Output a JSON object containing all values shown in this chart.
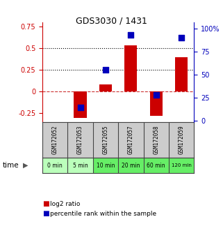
{
  "title": "GDS3030 / 1431",
  "samples": [
    "GSM172052",
    "GSM172053",
    "GSM172055",
    "GSM172057",
    "GSM172058",
    "GSM172059"
  ],
  "time_labels": [
    "0 min",
    "5 min",
    "10 min",
    "20 min",
    "60 min",
    "120 min"
  ],
  "log2_ratio": [
    0.0,
    -0.3,
    0.08,
    0.53,
    -0.28,
    0.4
  ],
  "percentile_rank_pct": [
    null,
    14,
    55,
    93,
    28,
    90
  ],
  "ylim_left": [
    -0.35,
    0.8
  ],
  "ylim_right": [
    -1.75,
    107
  ],
  "yticks_left": [
    -0.25,
    0.0,
    0.25,
    0.5,
    0.75
  ],
  "yticks_right": [
    0,
    25,
    50,
    75,
    100
  ],
  "ytick_labels_left": [
    "-0.25",
    "0",
    "0.25",
    "0.5",
    "0.75"
  ],
  "ytick_labels_right": [
    "0",
    "25",
    "50",
    "75",
    "100%"
  ],
  "hlines_dotted": [
    0.25,
    0.5
  ],
  "hline_dashed": 0.0,
  "bar_color": "#cc0000",
  "dot_color": "#0000bb",
  "bar_width": 0.5,
  "dot_size": 40,
  "label_color_left": "#cc0000",
  "label_color_right": "#0000bb",
  "bg_chart": "#ffffff",
  "bg_sample_box": "#cccccc",
  "bg_time_light": "#bbffbb",
  "bg_time_bright": "#66ee66",
  "bright_time_indices": [
    2,
    3,
    4,
    5
  ],
  "legend_bar_label": "log2 ratio",
  "legend_dot_label": "percentile rank within the sample",
  "xlabel_time": "time"
}
